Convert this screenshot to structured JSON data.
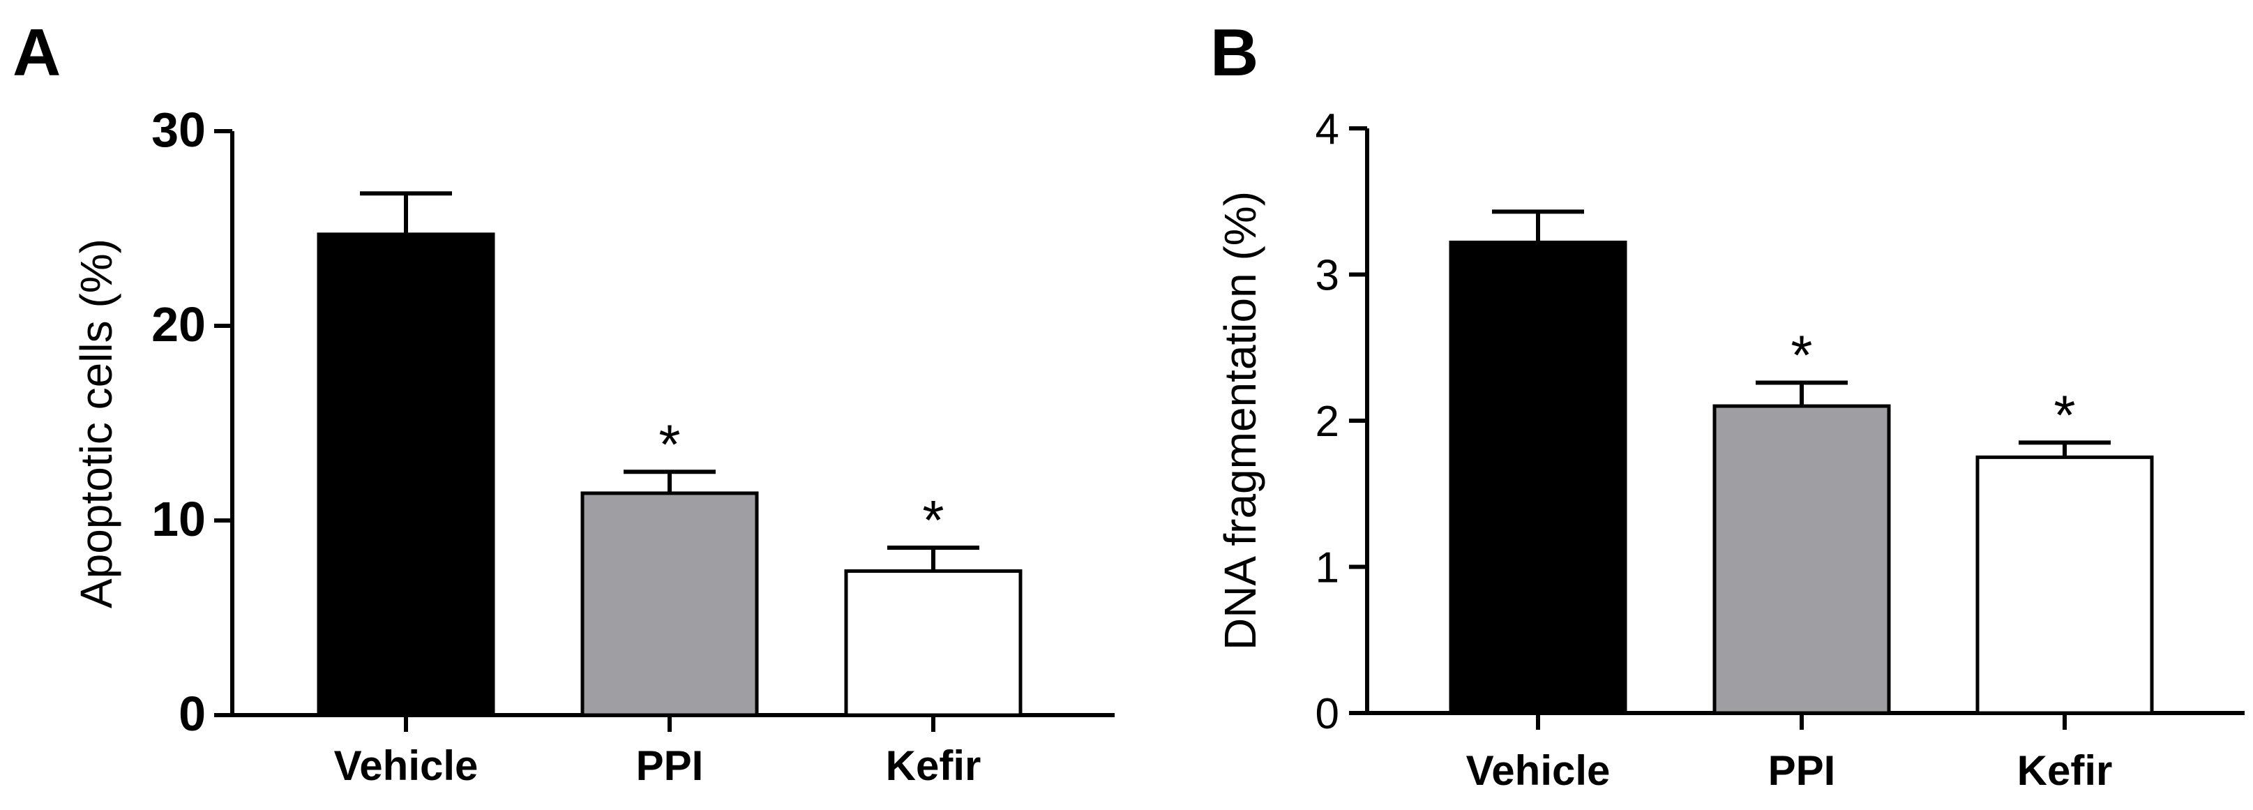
{
  "chart_data": [
    {
      "type": "bar",
      "panel": "A",
      "categories": [
        "Vehicle",
        "PPI",
        "Kefir"
      ],
      "values": [
        24.7,
        11.4,
        7.4
      ],
      "errors": [
        2.1,
        1.1,
        1.2
      ],
      "significance": [
        "",
        "*",
        "*"
      ],
      "colors": [
        "#000000",
        "#9e9ea3",
        "#ffffff"
      ],
      "ylabel": "Apoptotic cells (%)",
      "xlabel": "",
      "ylim": [
        0,
        30
      ],
      "yticks": [
        "0",
        "10",
        "20",
        "30"
      ],
      "ytickValues": [
        0,
        10,
        20,
        30
      ],
      "grid": false
    },
    {
      "type": "bar",
      "panel": "B",
      "categories": [
        "Vehicle",
        "PPI",
        "Kefir"
      ],
      "values": [
        3.22,
        2.1,
        1.75
      ],
      "errors": [
        0.21,
        0.16,
        0.1
      ],
      "significance": [
        "",
        "*",
        "*"
      ],
      "colors": [
        "#000000",
        "#9e9ea3",
        "#ffffff"
      ],
      "ylabel": "DNA fragmentation (%)",
      "xlabel": "",
      "ylim": [
        0,
        4
      ],
      "yticks": [
        "0",
        "1",
        "2",
        "3",
        "4"
      ],
      "ytickValues": [
        0,
        1,
        2,
        3,
        4
      ],
      "grid": false
    }
  ]
}
